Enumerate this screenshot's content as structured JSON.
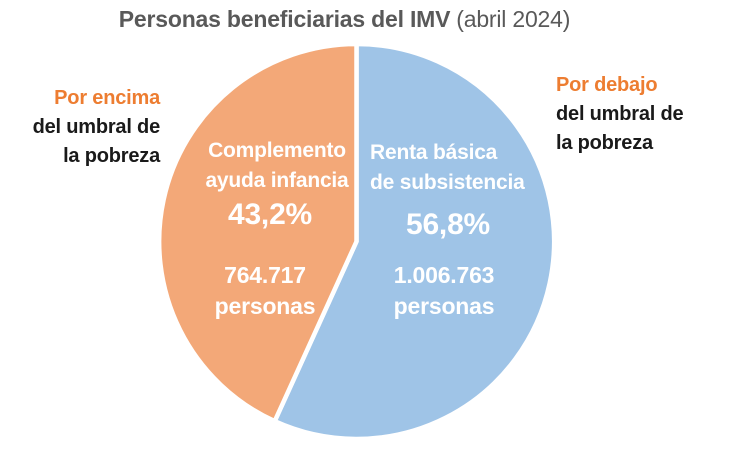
{
  "title": {
    "main": "Personas beneficiarias del IMV",
    "period": "(abril 2024)"
  },
  "annotations": {
    "left": {
      "lead": "Por encima",
      "line2": "del umbral de",
      "line3": "la pobreza"
    },
    "right": {
      "lead": "Por debajo",
      "line2": "del umbral de",
      "line3": "la pobreza"
    }
  },
  "colors": {
    "slice_orange": "#F3A878",
    "slice_blue": "#9FC4E7",
    "accent_orange": "#ED7D31",
    "title_gray": "#595959",
    "text_dark": "#1A1A1A",
    "label_white": "#FFFFFF",
    "background": "#FFFFFF"
  },
  "chart_data": {
    "type": "pie",
    "title": "Personas beneficiarias del IMV",
    "subtitle": "(abril 2024)",
    "legend_position": "none",
    "start_angle_deg": 0,
    "draw_order": [
      1,
      0
    ],
    "slices": [
      {
        "name": "Complemento ayuda infancia",
        "name_lines": [
          "Complemento",
          "ayuda infancia"
        ],
        "percent": 43.2,
        "percent_label": "43,2%",
        "people_count": "764.717",
        "people_word": "personas",
        "color": "#F3A878",
        "side_annotation": "Por encima del umbral de la pobreza"
      },
      {
        "name": "Renta básica de subsistencia",
        "name_lines": [
          "Renta básica",
          "de subsistencia"
        ],
        "percent": 56.8,
        "percent_label": "56,8%",
        "people_count": "1.006.763",
        "people_word": "personas",
        "color": "#9FC4E7",
        "side_annotation": "Por debajo del umbral de la pobreza"
      }
    ]
  }
}
